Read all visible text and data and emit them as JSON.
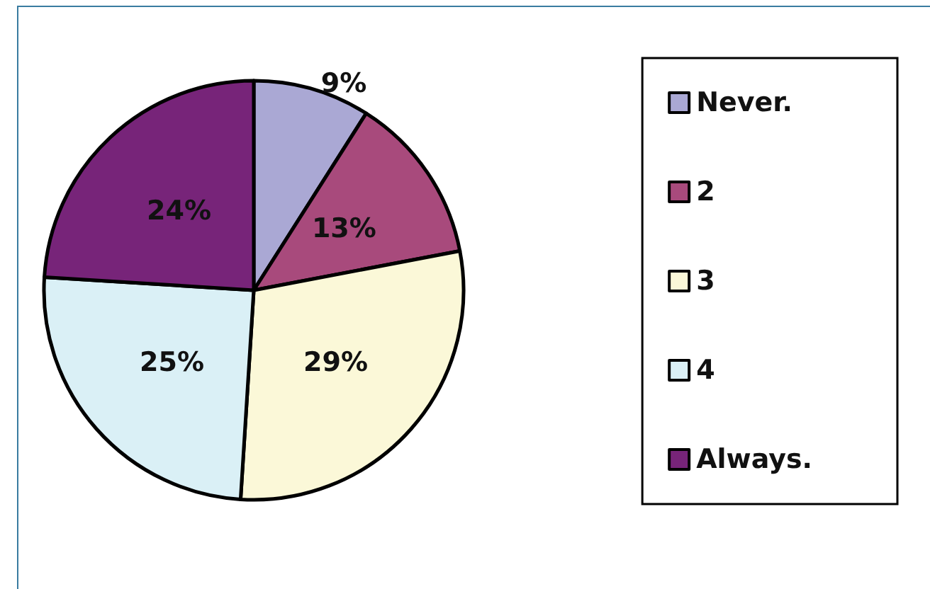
{
  "chart_data": {
    "type": "pie",
    "categories": [
      "Never.",
      "2",
      "3",
      "4",
      "Always."
    ],
    "values": [
      9,
      13,
      29,
      25,
      24
    ],
    "value_labels": [
      "9%",
      "13%",
      "29%",
      "25%",
      "24%"
    ],
    "colors": [
      "#aaa8d4",
      "#a84a7c",
      "#fbf8d8",
      "#daf0f6",
      "#772479"
    ],
    "legend": "right"
  }
}
